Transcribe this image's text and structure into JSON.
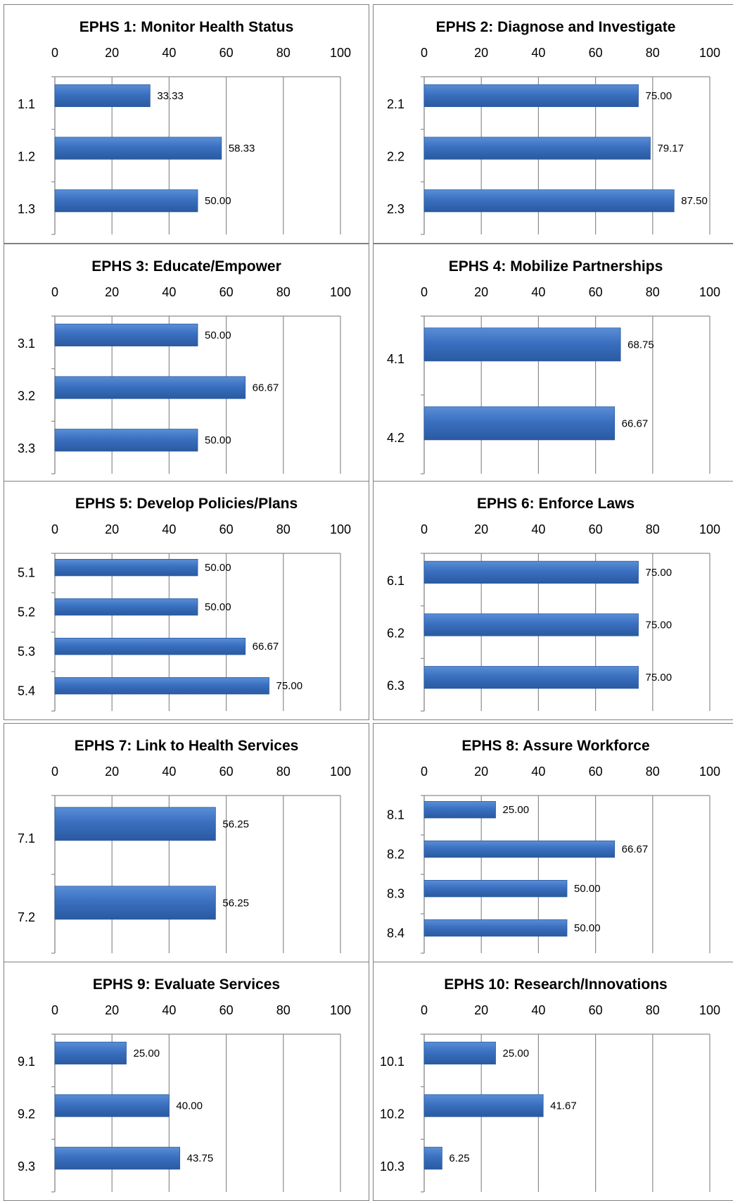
{
  "colors": {
    "bar": "#3a70c0",
    "bar_dark": "#2a5aa0",
    "grid": "#8c8c8c"
  },
  "chart_data": [
    {
      "type": "bar",
      "title": "EPHS 1: Monitor Health Status",
      "categories": [
        "1.1",
        "1.2",
        "1.3"
      ],
      "values": [
        33.33,
        58.33,
        50.0
      ],
      "labels": [
        "33.33",
        "58.33",
        "50.00"
      ],
      "xlim": [
        0,
        100
      ],
      "ticks": [
        "0",
        "20",
        "40",
        "60",
        "80",
        "100"
      ],
      "grid": true,
      "orientation": "horizontal"
    },
    {
      "type": "bar",
      "title": "EPHS 2: Diagnose and Investigate",
      "categories": [
        "2.1",
        "2.2",
        "2.3"
      ],
      "values": [
        75.0,
        79.17,
        87.5
      ],
      "labels": [
        "75.00",
        "79.17",
        "87.50"
      ],
      "xlim": [
        0,
        100
      ],
      "ticks": [
        "0",
        "20",
        "40",
        "60",
        "80",
        "100"
      ],
      "grid": true,
      "orientation": "horizontal"
    },
    {
      "type": "bar",
      "title": "EPHS 3: Educate/Empower",
      "categories": [
        "3.1",
        "3.2",
        "3.3"
      ],
      "values": [
        50.0,
        66.67,
        50.0
      ],
      "labels": [
        "50.00",
        "66.67",
        "50.00"
      ],
      "xlim": [
        0,
        100
      ],
      "ticks": [
        "0",
        "20",
        "40",
        "60",
        "80",
        "100"
      ],
      "grid": true,
      "orientation": "horizontal"
    },
    {
      "type": "bar",
      "title": "EPHS 4: Mobilize Partnerships",
      "categories": [
        "4.1",
        "4.2"
      ],
      "values": [
        68.75,
        66.67
      ],
      "labels": [
        "68.75",
        "66.67"
      ],
      "xlim": [
        0,
        100
      ],
      "ticks": [
        "0",
        "20",
        "40",
        "60",
        "80",
        "100"
      ],
      "grid": true,
      "orientation": "horizontal"
    },
    {
      "type": "bar",
      "title": "EPHS 5: Develop Policies/Plans",
      "categories": [
        "5.1",
        "5.2",
        "5.3",
        "5.4"
      ],
      "values": [
        50.0,
        50.0,
        66.67,
        75.0
      ],
      "labels": [
        "50.00",
        "50.00",
        "66.67",
        "75.00"
      ],
      "xlim": [
        0,
        100
      ],
      "ticks": [
        "0",
        "20",
        "40",
        "60",
        "80",
        "100"
      ],
      "grid": true,
      "orientation": "horizontal"
    },
    {
      "type": "bar",
      "title": "EPHS 6: Enforce Laws",
      "categories": [
        "6.1",
        "6.2",
        "6.3"
      ],
      "values": [
        75.0,
        75.0,
        75.0
      ],
      "labels": [
        "75.00",
        "75.00",
        "75.00"
      ],
      "xlim": [
        0,
        100
      ],
      "ticks": [
        "0",
        "20",
        "40",
        "60",
        "80",
        "100"
      ],
      "grid": true,
      "orientation": "horizontal"
    },
    {
      "type": "bar",
      "title": "EPHS 7: Link to Health Services",
      "categories": [
        "7.1",
        "7.2"
      ],
      "values": [
        56.25,
        56.25
      ],
      "labels": [
        "56.25",
        "56.25"
      ],
      "xlim": [
        0,
        100
      ],
      "ticks": [
        "0",
        "20",
        "40",
        "60",
        "80",
        "100"
      ],
      "grid": true,
      "orientation": "horizontal"
    },
    {
      "type": "bar",
      "title": "EPHS 8: Assure Workforce",
      "categories": [
        "8.1",
        "8.2",
        "8.3",
        "8.4"
      ],
      "values": [
        25.0,
        66.67,
        50.0,
        50.0
      ],
      "labels": [
        "25.00",
        "66.67",
        "50.00",
        "50.00"
      ],
      "xlim": [
        0,
        100
      ],
      "ticks": [
        "0",
        "20",
        "40",
        "60",
        "80",
        "100"
      ],
      "grid": true,
      "orientation": "horizontal"
    },
    {
      "type": "bar",
      "title": "EPHS 9: Evaluate Services",
      "categories": [
        "9.1",
        "9.2",
        "9.3"
      ],
      "values": [
        25.0,
        40.0,
        43.75
      ],
      "labels": [
        "25.00",
        "40.00",
        "43.75"
      ],
      "xlim": [
        0,
        100
      ],
      "ticks": [
        "0",
        "20",
        "40",
        "60",
        "80",
        "100"
      ],
      "grid": true,
      "orientation": "horizontal"
    },
    {
      "type": "bar",
      "title": "EPHS 10: Research/Innovations",
      "categories": [
        "10.1",
        "10.2",
        "10.3"
      ],
      "values": [
        25.0,
        41.67,
        6.25
      ],
      "labels": [
        "25.00",
        "41.67",
        "6.25"
      ],
      "xlim": [
        0,
        100
      ],
      "ticks": [
        "0",
        "20",
        "40",
        "60",
        "80",
        "100"
      ],
      "grid": true,
      "orientation": "horizontal"
    }
  ]
}
